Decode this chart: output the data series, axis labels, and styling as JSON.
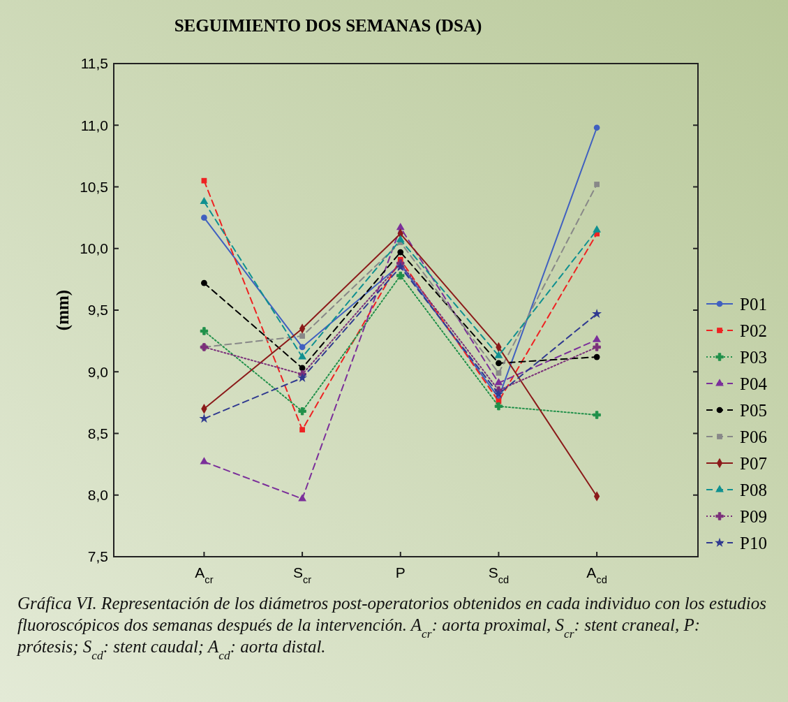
{
  "chart_data": {
    "type": "line",
    "title": "SEGUIMIENTO DOS SEMANAS (DSA)",
    "ylabel": "(mm)",
    "categories": [
      "A$_{cr}$",
      "S$_{cr}$",
      "P",
      "S$_{cd}$",
      "A$_{cd}$"
    ],
    "ylim": [
      7.5,
      11.5
    ],
    "yticks": [
      {
        "value": 7.5,
        "label": "7,5"
      },
      {
        "value": 8,
        "label": "8,0"
      },
      {
        "value": 8.5,
        "label": "8,5"
      },
      {
        "value": 9,
        "label": "9,0"
      },
      {
        "value": 9.5,
        "label": "9,5"
      },
      {
        "value": 10,
        "label": "10,0"
      },
      {
        "value": 10.5,
        "label": "10,5"
      },
      {
        "value": 11,
        "label": "11,0"
      },
      {
        "value": 11.5,
        "label": "11,5"
      }
    ],
    "legend": "right",
    "grid": false,
    "series": [
      {
        "name": "P01",
        "color": "#4060c0",
        "marker": "circle",
        "line_style": "solid",
        "values": [
          10.25,
          9.2,
          9.87,
          8.79,
          10.98
        ]
      },
      {
        "name": "P02",
        "color": "#ee2222",
        "marker": "square",
        "line_style": "dashed",
        "values": [
          10.55,
          8.53,
          9.91,
          8.76,
          10.12
        ]
      },
      {
        "name": "P03",
        "color": "#20904a",
        "marker": "cross",
        "line_style": "dotted",
        "values": [
          9.33,
          8.68,
          9.78,
          8.72,
          8.65
        ]
      },
      {
        "name": "P04",
        "color": "#7b2f9a",
        "marker": "triangle",
        "line_style": "dashed",
        "values": [
          8.27,
          7.97,
          10.17,
          8.91,
          9.26
        ]
      },
      {
        "name": "P05",
        "color": "#000000",
        "marker": "circle",
        "line_style": "dashed",
        "values": [
          9.72,
          9.03,
          9.97,
          9.07,
          9.12
        ]
      },
      {
        "name": "P06",
        "color": "#888888",
        "marker": "square",
        "line_style": "dashed",
        "values": [
          9.2,
          9.29,
          10.05,
          8.99,
          10.52
        ]
      },
      {
        "name": "P07",
        "color": "#8b1a1a",
        "marker": "diamond",
        "line_style": "solid",
        "values": [
          8.7,
          9.35,
          10.12,
          9.2,
          7.99
        ]
      },
      {
        "name": "P08",
        "color": "#109090",
        "marker": "triangle",
        "line_style": "dashed",
        "values": [
          10.38,
          9.12,
          10.07,
          9.13,
          10.15
        ]
      },
      {
        "name": "P09",
        "color": "#7b2f7a",
        "marker": "cross",
        "line_style": "dotted",
        "values": [
          9.2,
          8.98,
          9.88,
          8.85,
          9.2
        ]
      },
      {
        "name": "P10",
        "color": "#303a90",
        "marker": "star",
        "line_style": "dashed",
        "values": [
          8.62,
          8.95,
          9.85,
          8.82,
          9.47
        ]
      }
    ],
    "annotations": [
      "Gráfica VI. Representación de los diámetros post-operatorios obtenidos en cada individuo con los estudios fluoroscópicos dos semanas después de la intervención. A$_{cr}$: aorta proximal, S$_{cr}$: stent craneal, P: prótesis; S$_{cd}$: stent caudal; A$_{cd}$: aorta distal."
    ]
  }
}
